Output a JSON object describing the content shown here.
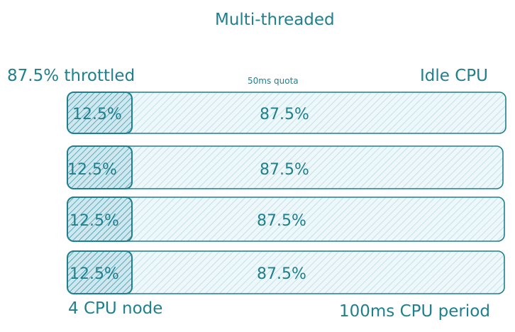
{
  "title": "Multi-threaded",
  "labels": {
    "throttled": "87.5% throttled",
    "quota": "50ms quota",
    "idle": "Idle CPU",
    "node": "4 CPU node",
    "period": "100ms CPU period"
  },
  "colors": {
    "stroke": "#1f7f8c",
    "text": "#1f7f8c",
    "hatch_light": "#b9dde6",
    "hatch_dark": "#2e8fa0",
    "fill_light": "#eef7fa",
    "fill_dark": "#cfe8f0"
  },
  "rows": [
    {
      "used": "12.5%",
      "idle": "87.5%",
      "used_fraction": 0.125
    },
    {
      "used": "12.5%",
      "idle": "87.5%",
      "used_fraction": 0.125
    },
    {
      "used": "12.5%",
      "idle": "87.5%",
      "used_fraction": 0.125
    },
    {
      "used": "12.5%",
      "idle": "87.5%",
      "used_fraction": 0.125
    }
  ]
}
